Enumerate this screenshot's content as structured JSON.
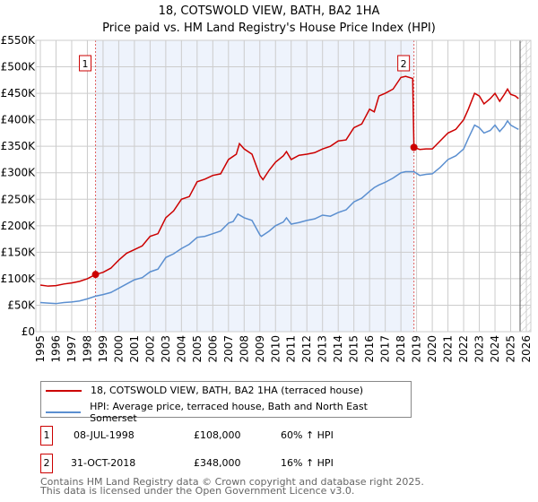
{
  "title": "18, COTSWOLD VIEW, BATH, BA2 1HA",
  "subtitle": "Price paid vs. HM Land Registry's House Price Index (HPI)",
  "chart_data": {
    "type": "line",
    "title": "18, COTSWOLD VIEW, BATH, BA2 1HA",
    "subtitle": "Price paid vs. HM Land Registry's House Price Index (HPI)",
    "ylim": [
      0,
      550000
    ],
    "xlim": [
      1995,
      2026
    ],
    "yticks": [
      {
        "v": 0,
        "label": "£0"
      },
      {
        "v": 50000,
        "label": "£50K"
      },
      {
        "v": 100000,
        "label": "£100K"
      },
      {
        "v": 150000,
        "label": "£150K"
      },
      {
        "v": 200000,
        "label": "£200K"
      },
      {
        "v": 250000,
        "label": "£250K"
      },
      {
        "v": 300000,
        "label": "£300K"
      },
      {
        "v": 350000,
        "label": "£350K"
      },
      {
        "v": 400000,
        "label": "£400K"
      },
      {
        "v": 450000,
        "label": "£450K"
      },
      {
        "v": 500000,
        "label": "£500K"
      },
      {
        "v": 550000,
        "label": "£550K"
      }
    ],
    "xticks": [
      "1995",
      "1996",
      "1997",
      "1998",
      "1999",
      "2000",
      "2001",
      "2002",
      "2003",
      "2004",
      "2005",
      "2006",
      "2007",
      "2008",
      "2009",
      "2010",
      "2011",
      "2012",
      "2013",
      "2014",
      "2015",
      "2016",
      "2017",
      "2018",
      "2019",
      "2020",
      "2021",
      "2022",
      "2023",
      "2024",
      "2025",
      "2026"
    ],
    "grid": true,
    "shaded_range": [
      1998.52,
      2018.83
    ],
    "hatched_from": 2025.6,
    "series": [
      {
        "name": "18, COTSWOLD VIEW, BATH, BA2 1HA (terraced house)",
        "color": "#cc0000",
        "x": [
          1995,
          1995.5,
          1996,
          1996.5,
          1997,
          1997.5,
          1998,
          1998.52,
          1999,
          1999.5,
          2000,
          2000.5,
          2001,
          2001.5,
          2002,
          2002.5,
          2003,
          2003.5,
          2004,
          2004.5,
          2005,
          2005.5,
          2006,
          2006.5,
          2007,
          2007.5,
          2007.7,
          2008,
          2008.5,
          2009,
          2009.2,
          2009.6,
          2010,
          2010.5,
          2010.7,
          2011,
          2011.5,
          2012,
          2012.5,
          2013,
          2013.5,
          2014,
          2014.5,
          2015,
          2015.5,
          2016,
          2016.3,
          2016.6,
          2017,
          2017.5,
          2018,
          2018.3,
          2018.75,
          2018.83,
          2019.2,
          2019.6,
          2020,
          2020.5,
          2021,
          2021.5,
          2022,
          2022.3,
          2022.7,
          2023,
          2023.3,
          2023.7,
          2024,
          2024.3,
          2024.6,
          2024.8,
          2025,
          2025.3,
          2025.5
        ],
        "y": [
          88000,
          86000,
          87000,
          90000,
          92000,
          95000,
          100000,
          108000,
          112000,
          120000,
          135000,
          148000,
          155000,
          162000,
          180000,
          185000,
          215000,
          228000,
          250000,
          255000,
          283000,
          288000,
          295000,
          298000,
          325000,
          335000,
          355000,
          345000,
          335000,
          295000,
          287000,
          305000,
          320000,
          332000,
          340000,
          325000,
          333000,
          335000,
          338000,
          345000,
          350000,
          360000,
          362000,
          385000,
          392000,
          420000,
          415000,
          445000,
          450000,
          458000,
          480000,
          482000,
          478000,
          348000,
          344000,
          345000,
          345000,
          360000,
          375000,
          382000,
          400000,
          420000,
          450000,
          445000,
          430000,
          440000,
          450000,
          435000,
          448000,
          458000,
          448000,
          445000,
          440000
        ]
      },
      {
        "name": "HPI: Average price, terraced house, Bath and North East Somerset",
        "color": "#5b8fd0",
        "x": [
          1995,
          1995.5,
          1996,
          1996.5,
          1997,
          1997.5,
          1998,
          1998.52,
          1999,
          1999.5,
          2000,
          2000.5,
          2001,
          2001.5,
          2002,
          2002.5,
          2003,
          2003.5,
          2004,
          2004.5,
          2005,
          2005.5,
          2006,
          2006.5,
          2007,
          2007.3,
          2007.6,
          2008,
          2008.5,
          2009,
          2009.1,
          2009.6,
          2010,
          2010.5,
          2010.7,
          2011,
          2011.5,
          2012,
          2012.5,
          2013,
          2013.5,
          2014,
          2014.5,
          2015,
          2015.5,
          2016,
          2016.3,
          2016.6,
          2017,
          2017.5,
          2018,
          2018.3,
          2018.83,
          2019.2,
          2019.6,
          2020,
          2020.5,
          2021,
          2021.5,
          2022,
          2022.3,
          2022.7,
          2023,
          2023.3,
          2023.7,
          2024,
          2024.3,
          2024.6,
          2024.8,
          2025,
          2025.3,
          2025.5
        ],
        "y": [
          55000,
          54000,
          53000,
          55000,
          56000,
          58000,
          62000,
          67000,
          70000,
          74000,
          82000,
          90000,
          98000,
          102000,
          113000,
          118000,
          140000,
          147000,
          157000,
          165000,
          178000,
          180000,
          185000,
          190000,
          205000,
          208000,
          222000,
          215000,
          210000,
          183000,
          180000,
          190000,
          200000,
          207000,
          215000,
          203000,
          206000,
          210000,
          213000,
          220000,
          218000,
          225000,
          230000,
          245000,
          252000,
          265000,
          272000,
          277000,
          282000,
          290000,
          300000,
          302000,
          302000,
          295000,
          297000,
          298000,
          310000,
          325000,
          332000,
          345000,
          365000,
          390000,
          385000,
          375000,
          380000,
          390000,
          378000,
          388000,
          398000,
          390000,
          385000,
          382000
        ]
      }
    ],
    "annotations": [
      {
        "label": "1",
        "x": 1998.52,
        "y": 108000
      },
      {
        "label": "2",
        "x": 2018.83,
        "y": 348000
      }
    ]
  },
  "legend": [
    {
      "label": "18, COTSWOLD VIEW, BATH, BA2 1HA (terraced house)",
      "color": "#cc0000"
    },
    {
      "label": "HPI: Average price, terraced house, Bath and North East Somerset",
      "color": "#5b8fd0"
    }
  ],
  "transactions": [
    {
      "num": "1",
      "date": "08-JUL-1998",
      "price": "£108,000",
      "hpi": "60% ↑ HPI"
    },
    {
      "num": "2",
      "date": "31-OCT-2018",
      "price": "£348,000",
      "hpi": "16% ↑ HPI"
    }
  ],
  "footer": [
    "Contains HM Land Registry data © Crown copyright and database right 2025.",
    "This data is licensed under the Open Government Licence v3.0."
  ]
}
